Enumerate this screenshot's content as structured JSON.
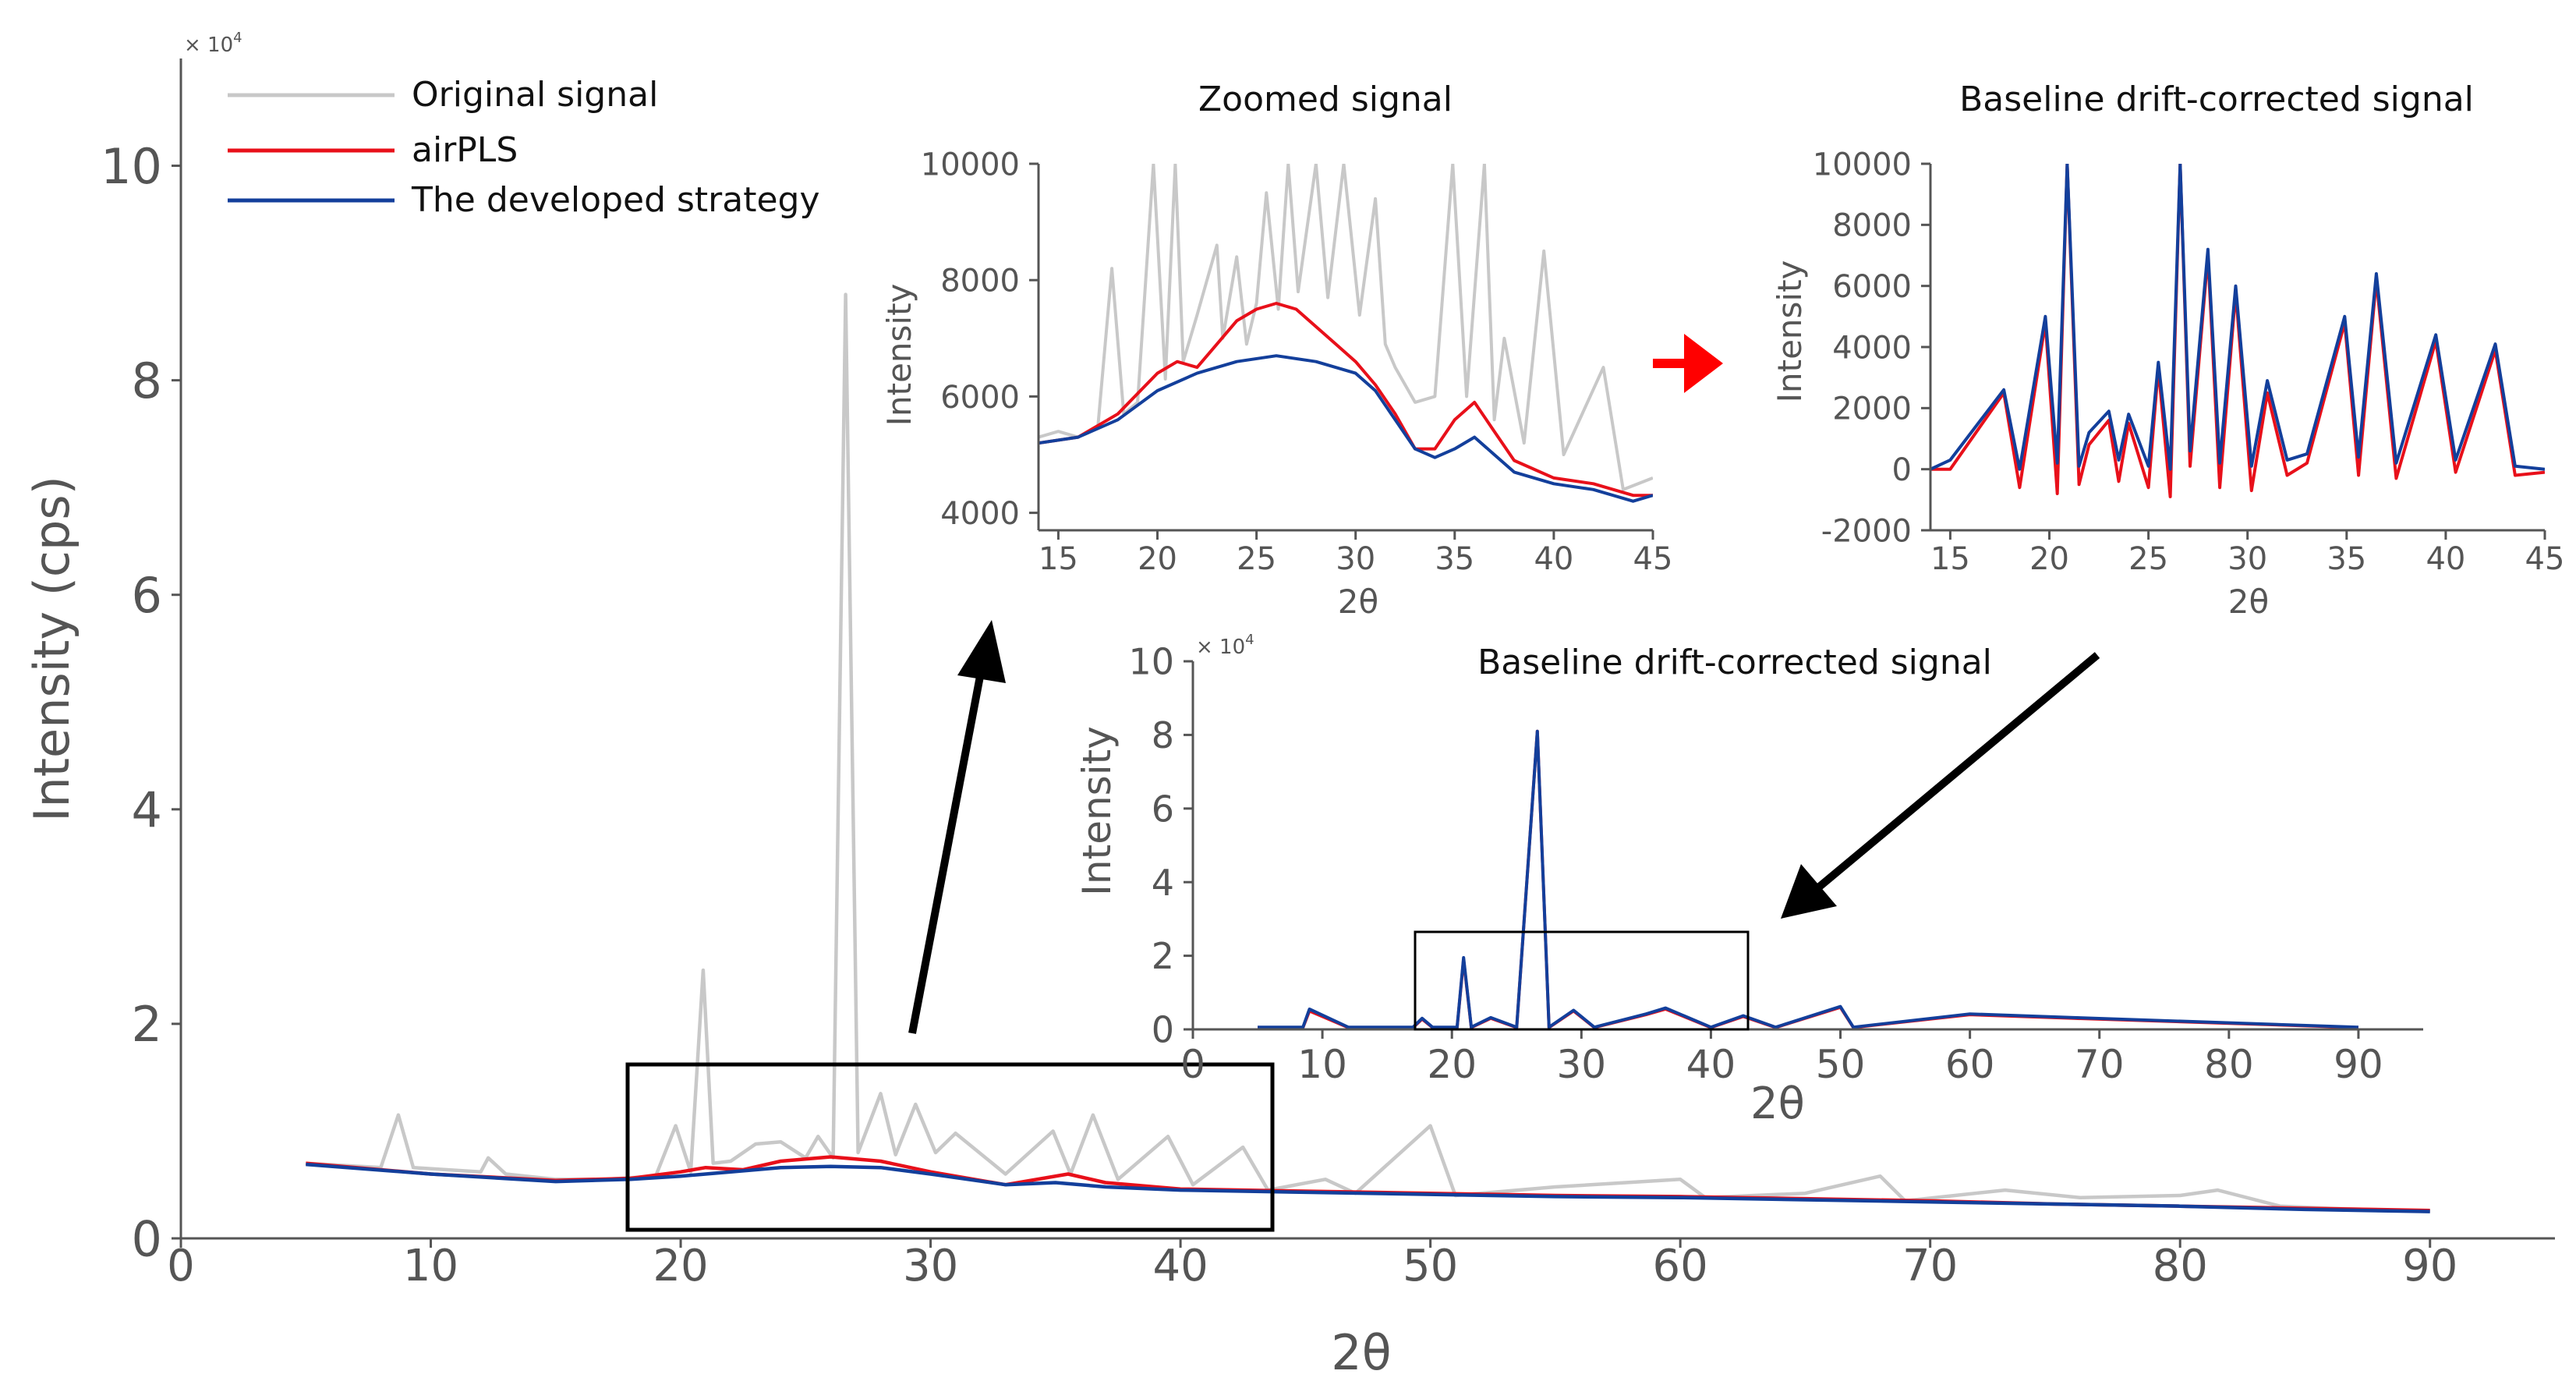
{
  "colors": {
    "original": "#c8c8c8",
    "airpls": "#e8101a",
    "developed": "#133f9b",
    "axis": "#555555",
    "arrow": "#000000",
    "red_arrow": "#ff0000"
  },
  "legend": {
    "items": [
      {
        "label": "Original signal",
        "color": "#c8c8c8"
      },
      {
        "label": "airPLS",
        "color": "#e8101a"
      },
      {
        "label": "The developed strategy",
        "color": "#133f9b"
      }
    ]
  },
  "chart_data": [
    {
      "id": "main",
      "type": "line",
      "title": "",
      "xlabel": "2θ",
      "ylabel": "Intensity (cps)",
      "y_scale_note": "×10^4",
      "xlim": [
        0,
        95
      ],
      "ylim": [
        0,
        11
      ],
      "xticks": [
        0,
        10,
        20,
        30,
        40,
        50,
        60,
        70,
        80,
        90
      ],
      "yticks": [
        0,
        2,
        4,
        6,
        8,
        10
      ],
      "series": [
        {
          "name": "Original signal",
          "x": [
            5,
            8,
            8.7,
            9.3,
            12,
            12.3,
            13,
            15,
            17,
            19,
            19.8,
            20.4,
            20.9,
            21.3,
            22,
            23,
            24,
            25,
            25.5,
            26.1,
            26.6,
            27.1,
            28,
            28.6,
            29.4,
            30.2,
            31,
            33,
            34.9,
            35.6,
            36.5,
            37.5,
            39.5,
            40.5,
            42.5,
            43.5,
            45.8,
            47,
            50,
            51,
            55,
            60,
            61,
            65,
            68,
            69,
            73,
            76,
            80,
            81.5,
            84,
            86,
            90
          ],
          "y": [
            0.7,
            0.66,
            1.15,
            0.66,
            0.62,
            0.75,
            0.6,
            0.55,
            0.55,
            0.58,
            1.05,
            0.62,
            2.5,
            0.7,
            0.72,
            0.88,
            0.9,
            0.75,
            0.95,
            0.75,
            8.8,
            0.8,
            1.35,
            0.78,
            1.25,
            0.8,
            0.98,
            0.6,
            1.0,
            0.6,
            1.15,
            0.55,
            0.95,
            0.5,
            0.85,
            0.45,
            0.55,
            0.42,
            1.05,
            0.4,
            0.48,
            0.55,
            0.38,
            0.42,
            0.58,
            0.35,
            0.45,
            0.38,
            0.4,
            0.45,
            0.3,
            0.28,
            0.25
          ]
        },
        {
          "name": "airPLS",
          "x": [
            5,
            10,
            15,
            18,
            20,
            21,
            22.5,
            24,
            26,
            28,
            30,
            33,
            35.5,
            37,
            40,
            45,
            50,
            55,
            60,
            65,
            70,
            75,
            80,
            85,
            90
          ],
          "y": [
            0.7,
            0.6,
            0.54,
            0.56,
            0.62,
            0.66,
            0.64,
            0.72,
            0.76,
            0.72,
            0.62,
            0.5,
            0.6,
            0.52,
            0.46,
            0.44,
            0.42,
            0.4,
            0.39,
            0.37,
            0.35,
            0.32,
            0.3,
            0.28,
            0.26
          ]
        },
        {
          "name": "The developed strategy",
          "x": [
            5,
            10,
            15,
            18,
            20,
            22,
            24,
            26,
            28,
            30,
            33,
            35,
            37,
            40,
            45,
            50,
            55,
            60,
            65,
            70,
            75,
            80,
            85,
            90
          ],
          "y": [
            0.69,
            0.6,
            0.53,
            0.55,
            0.58,
            0.62,
            0.66,
            0.67,
            0.66,
            0.6,
            0.5,
            0.52,
            0.48,
            0.45,
            0.43,
            0.41,
            0.39,
            0.38,
            0.36,
            0.34,
            0.32,
            0.3,
            0.27,
            0.25
          ]
        }
      ],
      "annotations": [
        "zoom box 2θ 17.8–43.6"
      ]
    },
    {
      "id": "zoom",
      "type": "line",
      "title": "Zoomed signal",
      "xlabel": "2θ",
      "ylabel": "Intensity",
      "xlim": [
        14,
        45
      ],
      "ylim": [
        3700,
        10000
      ],
      "xticks": [
        15,
        20,
        25,
        30,
        35,
        40,
        45
      ],
      "yticks": [
        4000,
        6000,
        8000,
        10000
      ],
      "series": [
        {
          "name": "Original signal",
          "x": [
            14,
            15,
            16,
            17,
            17.7,
            18.3,
            19,
            19.8,
            20.4,
            20.9,
            21.3,
            22,
            23,
            23.3,
            24,
            24.5,
            25,
            25.5,
            26.1,
            26.6,
            27.1,
            28,
            28.6,
            29.4,
            30.2,
            31,
            31.5,
            32,
            33,
            34,
            34.9,
            35.6,
            36.5,
            37,
            37.5,
            38.5,
            39.5,
            40.5,
            42.5,
            43.5,
            45
          ],
          "y": [
            5300,
            5400,
            5300,
            5500,
            8200,
            5700,
            5900,
            10000,
            6300,
            10000,
            6600,
            7400,
            8600,
            7000,
            8400,
            6900,
            7600,
            9500,
            7500,
            10000,
            7800,
            10000,
            7700,
            10000,
            7400,
            9400,
            6900,
            6500,
            5900,
            6000,
            10000,
            6000,
            10000,
            5600,
            7000,
            5200,
            8500,
            5000,
            6500,
            4400,
            4600
          ]
        },
        {
          "name": "airPLS",
          "x": [
            14,
            16,
            18,
            20,
            21,
            22,
            23,
            24,
            25,
            26,
            27,
            28,
            29,
            30,
            31,
            32,
            33,
            34,
            35,
            36,
            37,
            38,
            40,
            42,
            44,
            45
          ],
          "y": [
            5200,
            5300,
            5700,
            6400,
            6600,
            6500,
            6900,
            7300,
            7500,
            7600,
            7500,
            7200,
            6900,
            6600,
            6200,
            5700,
            5100,
            5100,
            5600,
            5900,
            5400,
            4900,
            4600,
            4500,
            4300,
            4300
          ]
        },
        {
          "name": "The developed strategy",
          "x": [
            14,
            16,
            18,
            20,
            22,
            24,
            26,
            28,
            30,
            31,
            32,
            33,
            34,
            35,
            36,
            37,
            38,
            40,
            42,
            44,
            45
          ],
          "y": [
            5200,
            5300,
            5600,
            6100,
            6400,
            6600,
            6700,
            6600,
            6400,
            6100,
            5600,
            5100,
            4950,
            5100,
            5300,
            5000,
            4700,
            4500,
            4400,
            4200,
            4300
          ]
        }
      ]
    },
    {
      "id": "corrected_zoom",
      "type": "line",
      "title": "Baseline drift-corrected signal",
      "xlabel": "2θ",
      "ylabel": "Intensity",
      "xlim": [
        14,
        45
      ],
      "ylim": [
        -2000,
        10000
      ],
      "xticks": [
        15,
        20,
        25,
        30,
        35,
        40,
        45
      ],
      "yticks": [
        -2000,
        0,
        2000,
        4000,
        6000,
        8000,
        10000
      ],
      "series": [
        {
          "name": "airPLS",
          "x": [
            14,
            15,
            17.7,
            18.5,
            19.8,
            20.4,
            20.9,
            21.5,
            22,
            23,
            23.5,
            24,
            25,
            25.5,
            26.1,
            26.6,
            27.1,
            28,
            28.6,
            29.4,
            30.2,
            31,
            32,
            33,
            34.9,
            35.6,
            36.5,
            37.5,
            39.5,
            40.5,
            42.5,
            43.5,
            45
          ],
          "y": [
            0,
            0,
            2500,
            -600,
            4800,
            -800,
            10000,
            -500,
            800,
            1600,
            -400,
            1500,
            -600,
            3300,
            -900,
            10000,
            100,
            7000,
            -600,
            5800,
            -700,
            2500,
            -200,
            200,
            4800,
            -200,
            6200,
            -300,
            4200,
            -100,
            3900,
            -200,
            -100
          ]
        },
        {
          "name": "The developed strategy",
          "x": [
            14,
            15,
            17.7,
            18.5,
            19.8,
            20.4,
            20.9,
            21.5,
            22,
            23,
            23.5,
            24,
            25,
            25.5,
            26.1,
            26.6,
            27.1,
            28,
            28.6,
            29.4,
            30.2,
            31,
            32,
            33,
            34.9,
            35.6,
            36.5,
            37.5,
            39.5,
            40.5,
            42.5,
            43.5,
            45
          ],
          "y": [
            0,
            300,
            2600,
            0,
            5000,
            200,
            10000,
            100,
            1200,
            1900,
            300,
            1800,
            100,
            3500,
            0,
            10000,
            600,
            7200,
            200,
            6000,
            100,
            2900,
            300,
            500,
            5000,
            400,
            6400,
            200,
            4400,
            300,
            4100,
            100,
            0
          ]
        }
      ]
    },
    {
      "id": "corrected_full",
      "type": "line",
      "title": "Baseline drift-corrected signal",
      "xlabel": "2θ",
      "ylabel": "Intensity",
      "y_scale_note": "×10^4",
      "xlim": [
        0,
        95
      ],
      "ylim": [
        0,
        10
      ],
      "xticks": [
        0,
        10,
        20,
        30,
        40,
        50,
        60,
        70,
        80,
        90
      ],
      "yticks": [
        0,
        2,
        4,
        6,
        8,
        10
      ],
      "series": [
        {
          "name": "airPLS",
          "x": [
            5,
            8.5,
            9,
            12,
            17,
            17.7,
            18.5,
            20.4,
            20.9,
            21.5,
            23,
            25,
            26.6,
            27.5,
            29.4,
            31,
            35,
            36.5,
            40,
            42.5,
            45,
            50,
            51,
            60,
            68,
            90
          ],
          "y": [
            0.05,
            0.05,
            0.5,
            0.05,
            0.05,
            0.28,
            0.05,
            0.05,
            1.9,
            0.05,
            0.3,
            0.05,
            8.1,
            0.05,
            0.5,
            0.05,
            0.4,
            0.55,
            0.05,
            0.35,
            0.05,
            0.6,
            0.05,
            0.4,
            0.3,
            0.05
          ]
        },
        {
          "name": "The developed strategy",
          "x": [
            5,
            8.5,
            9,
            12,
            17,
            17.7,
            18.5,
            20.4,
            20.9,
            21.5,
            23,
            25,
            26.6,
            27.5,
            29.4,
            31,
            35,
            36.5,
            40,
            42.5,
            45,
            50,
            51,
            60,
            68,
            90
          ],
          "y": [
            0.06,
            0.06,
            0.55,
            0.06,
            0.06,
            0.3,
            0.06,
            0.06,
            1.95,
            0.06,
            0.32,
            0.06,
            8.1,
            0.06,
            0.52,
            0.06,
            0.42,
            0.58,
            0.06,
            0.37,
            0.06,
            0.62,
            0.06,
            0.42,
            0.32,
            0.06
          ]
        }
      ],
      "annotations": [
        "zoom box 2θ 17–43"
      ]
    }
  ]
}
